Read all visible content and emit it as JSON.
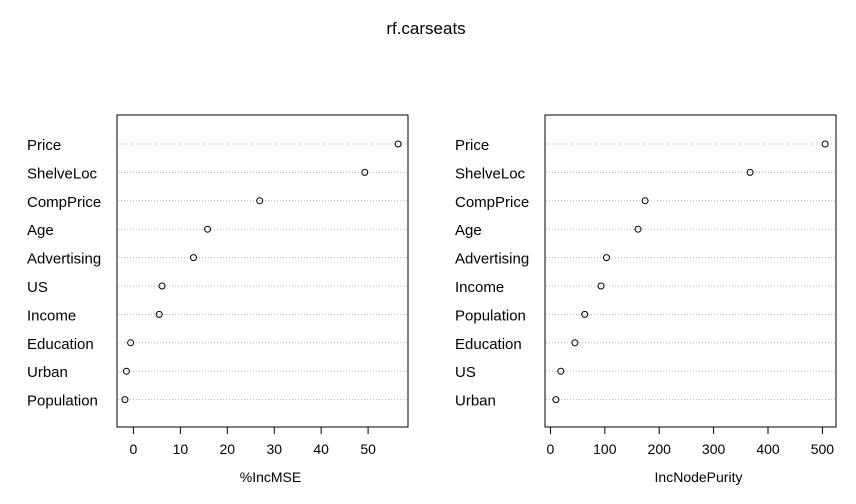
{
  "title": "rf.carseats",
  "chart_data": [
    {
      "type": "scatter",
      "subtype": "dotchart",
      "xlabel": "%IncMSE",
      "xlim": [
        -3.5,
        58.5
      ],
      "xticks": [
        0,
        10,
        20,
        30,
        40,
        50
      ],
      "grid": "dotted horizontal lines",
      "categories": [
        "Price",
        "ShelveLoc",
        "CompPrice",
        "Age",
        "Advertising",
        "US",
        "Income",
        "Education",
        "Urban",
        "Population"
      ],
      "values": [
        56.4,
        49.3,
        26.9,
        15.8,
        12.8,
        6.1,
        5.5,
        -0.6,
        -1.5,
        -1.8
      ]
    },
    {
      "type": "scatter",
      "subtype": "dotchart",
      "xlabel": "IncNodePurity",
      "xlim": [
        -10,
        525
      ],
      "xticks": [
        0,
        100,
        200,
        300,
        400,
        500
      ],
      "grid": "dotted horizontal lines",
      "categories": [
        "Price",
        "ShelveLoc",
        "CompPrice",
        "Age",
        "Advertising",
        "Income",
        "Population",
        "Education",
        "US",
        "Urban"
      ],
      "values": [
        505,
        367,
        174,
        161,
        103,
        93,
        63,
        45,
        19,
        10
      ]
    }
  ]
}
